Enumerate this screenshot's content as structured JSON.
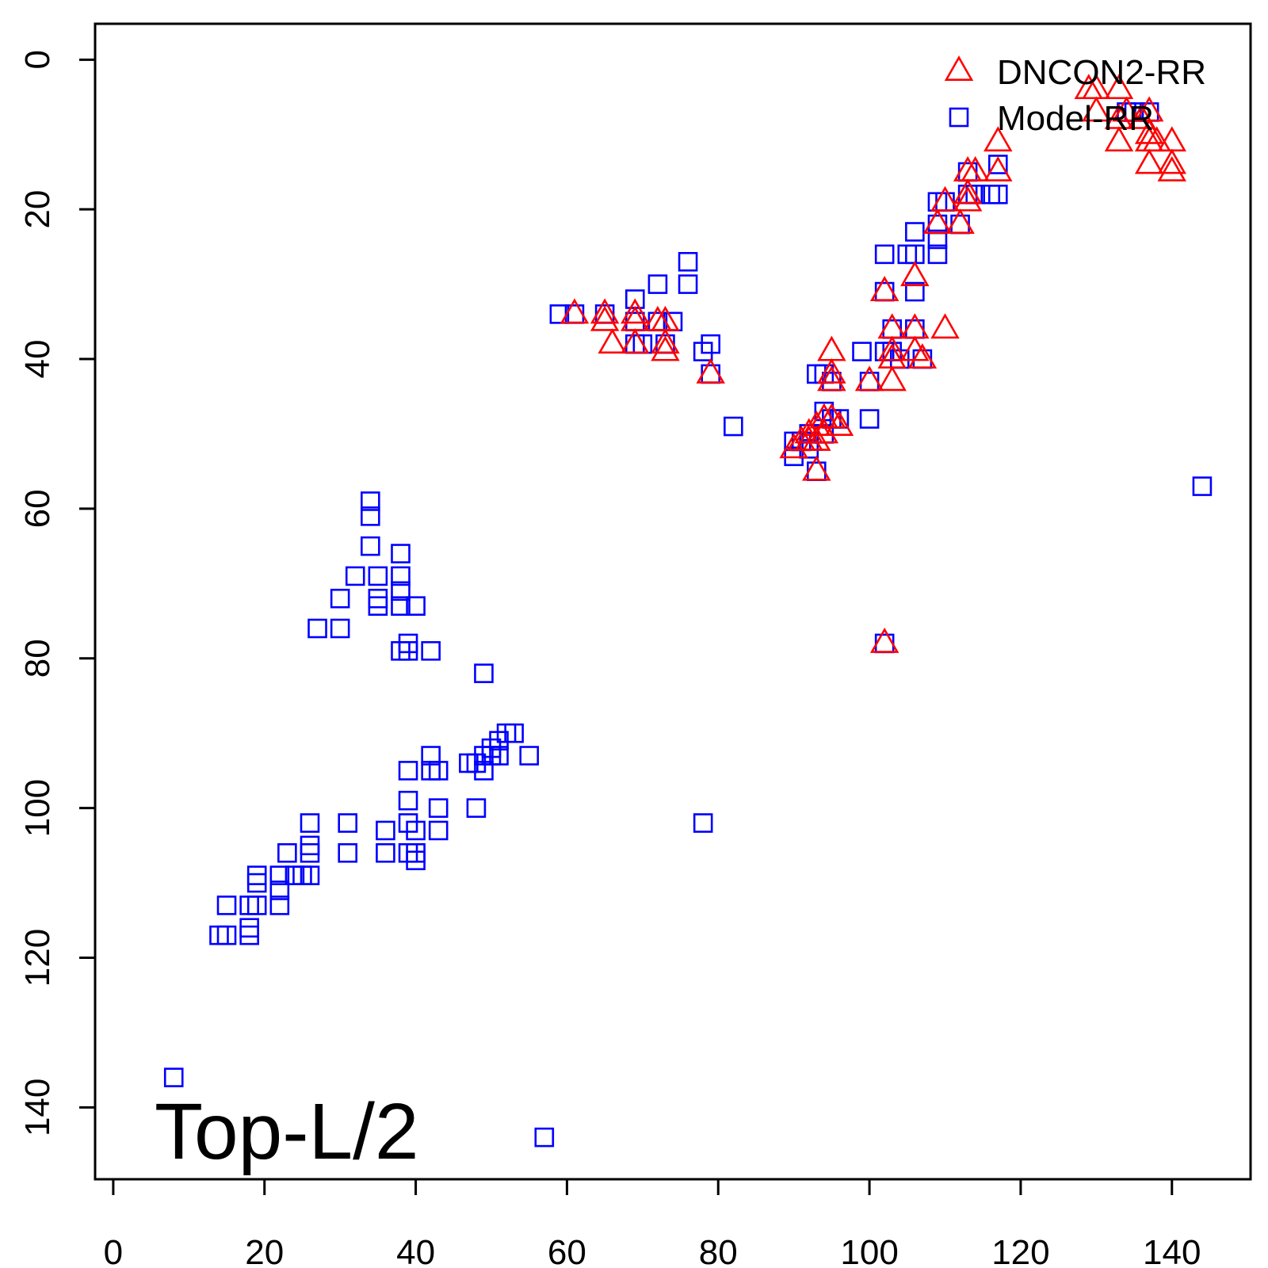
{
  "chart_data": {
    "type": "scatter",
    "title": "",
    "xlabel": "",
    "ylabel": "",
    "xlim": [
      -2.4,
      150.4
    ],
    "ylim": [
      -4.8,
      149.6
    ],
    "y_reversed": true,
    "x_ticks": [
      0,
      20,
      40,
      60,
      80,
      100,
      120,
      140
    ],
    "y_ticks": [
      0,
      20,
      40,
      60,
      80,
      100,
      120,
      140
    ],
    "grid": false,
    "legend_position": "top-right",
    "annotation": "Top-L/2",
    "series": [
      {
        "name": "Model-RR",
        "marker": "square",
        "color": "#0000ff",
        "points": [
          [
            59,
            34
          ],
          [
            61,
            34
          ],
          [
            65,
            34
          ],
          [
            69,
            32
          ],
          [
            69,
            35
          ],
          [
            69,
            38
          ],
          [
            70,
            38
          ],
          [
            72,
            30
          ],
          [
            72,
            35
          ],
          [
            73,
            38
          ],
          [
            74,
            35
          ],
          [
            76,
            27
          ],
          [
            76,
            30
          ],
          [
            78,
            39
          ],
          [
            79,
            38
          ],
          [
            79,
            42
          ],
          [
            82,
            49
          ],
          [
            90,
            53
          ],
          [
            90,
            51
          ],
          [
            91,
            51
          ],
          [
            92,
            50
          ],
          [
            92,
            52
          ],
          [
            93,
            42
          ],
          [
            93,
            55
          ],
          [
            94,
            42
          ],
          [
            94,
            47
          ],
          [
            94,
            50
          ],
          [
            95,
            48
          ],
          [
            95,
            43
          ],
          [
            96,
            48
          ],
          [
            99,
            39
          ],
          [
            100,
            43
          ],
          [
            100,
            48
          ],
          [
            102,
            26
          ],
          [
            102,
            31
          ],
          [
            102,
            39
          ],
          [
            102,
            78
          ],
          [
            103,
            36
          ],
          [
            103,
            39
          ],
          [
            104,
            40
          ],
          [
            105,
            26
          ],
          [
            106,
            23
          ],
          [
            106,
            26
          ],
          [
            106,
            31
          ],
          [
            106,
            36
          ],
          [
            107,
            40
          ],
          [
            109,
            19
          ],
          [
            109,
            22
          ],
          [
            109,
            24
          ],
          [
            109,
            26
          ],
          [
            110,
            19
          ],
          [
            112,
            22
          ],
          [
            113,
            15
          ],
          [
            113,
            18
          ],
          [
            114,
            18
          ],
          [
            116,
            18
          ],
          [
            117,
            14
          ],
          [
            117,
            18
          ],
          [
            134,
            7
          ],
          [
            135,
            7
          ],
          [
            137,
            7
          ],
          [
            144,
            57
          ],
          [
            34,
            59
          ],
          [
            34,
            61
          ],
          [
            34,
            65
          ],
          [
            32,
            69
          ],
          [
            35,
            69
          ],
          [
            38,
            66
          ],
          [
            38,
            69
          ],
          [
            38,
            71
          ],
          [
            35,
            72
          ],
          [
            35,
            73
          ],
          [
            38,
            73
          ],
          [
            40,
            73
          ],
          [
            30,
            72
          ],
          [
            27,
            76
          ],
          [
            30,
            76
          ],
          [
            38,
            79
          ],
          [
            39,
            78
          ],
          [
            39,
            79
          ],
          [
            42,
            79
          ],
          [
            49,
            82
          ],
          [
            42,
            93
          ],
          [
            42,
            95
          ],
          [
            43,
            95
          ],
          [
            39,
            95
          ],
          [
            48,
            94
          ],
          [
            49,
            93
          ],
          [
            49,
            95
          ],
          [
            50,
            92
          ],
          [
            50,
            93
          ],
          [
            51,
            91
          ],
          [
            51,
            93
          ],
          [
            52,
            90
          ],
          [
            53,
            90
          ],
          [
            55,
            93
          ],
          [
            47,
            94
          ],
          [
            39,
            99
          ],
          [
            39,
            102
          ],
          [
            40,
            103
          ],
          [
            43,
            100
          ],
          [
            43,
            103
          ],
          [
            48,
            100
          ],
          [
            36,
            103
          ],
          [
            36,
            106
          ],
          [
            39,
            106
          ],
          [
            40,
            106
          ],
          [
            40,
            107
          ],
          [
            31,
            102
          ],
          [
            31,
            106
          ],
          [
            26,
            102
          ],
          [
            26,
            105
          ],
          [
            26,
            106
          ],
          [
            26,
            109
          ],
          [
            23,
            106
          ],
          [
            22,
            109
          ],
          [
            22,
            111
          ],
          [
            22,
            113
          ],
          [
            24,
            109
          ],
          [
            25,
            109
          ],
          [
            19,
            109
          ],
          [
            19,
            110
          ],
          [
            15,
            113
          ],
          [
            18,
            113
          ],
          [
            19,
            113
          ],
          [
            18,
            116
          ],
          [
            18,
            117
          ],
          [
            14,
            117
          ],
          [
            15,
            117
          ],
          [
            8,
            136
          ],
          [
            57,
            144
          ],
          [
            78,
            102
          ]
        ]
      },
      {
        "name": "DNCON2-RR",
        "marker": "triangle",
        "color": "#ff0000",
        "points": [
          [
            61,
            34
          ],
          [
            65,
            34
          ],
          [
            65,
            35
          ],
          [
            66,
            38
          ],
          [
            69,
            34
          ],
          [
            69,
            35
          ],
          [
            69,
            38
          ],
          [
            72,
            35
          ],
          [
            73,
            35
          ],
          [
            73,
            38
          ],
          [
            73,
            39
          ],
          [
            79,
            42
          ],
          [
            90,
            52
          ],
          [
            91,
            51
          ],
          [
            92,
            50
          ],
          [
            92,
            51
          ],
          [
            93,
            49
          ],
          [
            93,
            51
          ],
          [
            93,
            55
          ],
          [
            94,
            48
          ],
          [
            94,
            50
          ],
          [
            95,
            39
          ],
          [
            95,
            42
          ],
          [
            95,
            43
          ],
          [
            95,
            48
          ],
          [
            96,
            49
          ],
          [
            100,
            43
          ],
          [
            102,
            31
          ],
          [
            102,
            78
          ],
          [
            103,
            36
          ],
          [
            103,
            39
          ],
          [
            103,
            40
          ],
          [
            103,
            43
          ],
          [
            106,
            29
          ],
          [
            106,
            36
          ],
          [
            106,
            39
          ],
          [
            107,
            40
          ],
          [
            110,
            36
          ],
          [
            109,
            22
          ],
          [
            110,
            19
          ],
          [
            112,
            22
          ],
          [
            113,
            15
          ],
          [
            113,
            18
          ],
          [
            113,
            19
          ],
          [
            114,
            15
          ],
          [
            117,
            11
          ],
          [
            117,
            15
          ],
          [
            129,
            4
          ],
          [
            130,
            4
          ],
          [
            130,
            7
          ],
          [
            133,
            4
          ],
          [
            133,
            8
          ],
          [
            133,
            11
          ],
          [
            134,
            7
          ],
          [
            136,
            8
          ],
          [
            137,
            7
          ],
          [
            137,
            10
          ],
          [
            137,
            11
          ],
          [
            137,
            14
          ],
          [
            138,
            11
          ],
          [
            140,
            11
          ],
          [
            140,
            14
          ],
          [
            140,
            15
          ]
        ]
      }
    ]
  }
}
